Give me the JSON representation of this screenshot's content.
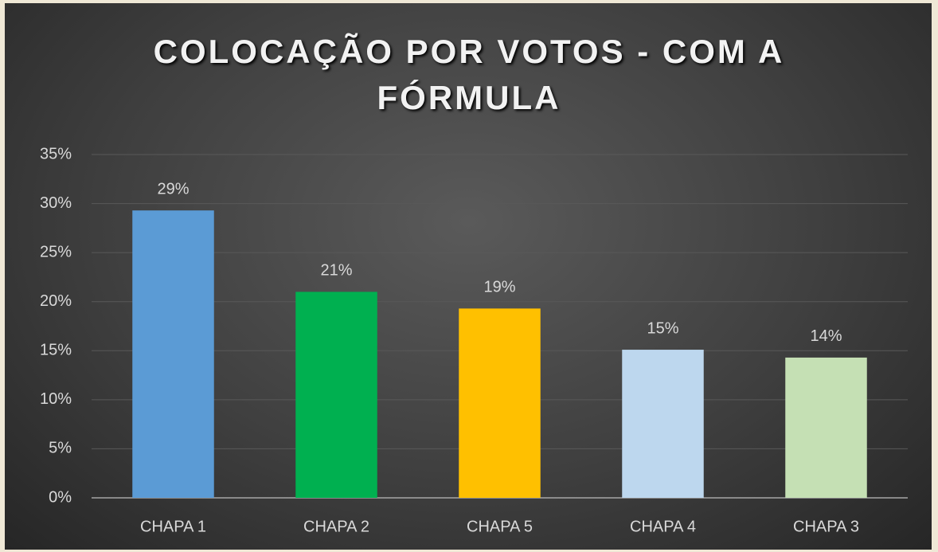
{
  "chart_data": {
    "type": "bar",
    "title": "COLOCAÇÃO POR VOTOS - COM A FÓRMULA",
    "categories": [
      "CHAPA 1",
      "CHAPA 2",
      "CHAPA 5",
      "CHAPA 4",
      "CHAPA 3"
    ],
    "values": [
      29.3,
      21,
      19.3,
      15.1,
      14.3
    ],
    "value_labels": [
      "29%",
      "21%",
      "19%",
      "15%",
      "14%"
    ],
    "colors": [
      "#5b9bd5",
      "#00b050",
      "#ffc000",
      "#bdd7ee",
      "#c5e0b4"
    ],
    "ylim": [
      0,
      35
    ],
    "yticks": [
      {
        "value": 0,
        "label": "0%"
      },
      {
        "value": 5,
        "label": "5%"
      },
      {
        "value": 10,
        "label": "10%"
      },
      {
        "value": 15,
        "label": "15%"
      },
      {
        "value": 20,
        "label": "20%"
      },
      {
        "value": 25,
        "label": "25%"
      },
      {
        "value": 30,
        "label": "30%"
      },
      {
        "value": 35,
        "label": "35%"
      }
    ],
    "grid": true
  }
}
